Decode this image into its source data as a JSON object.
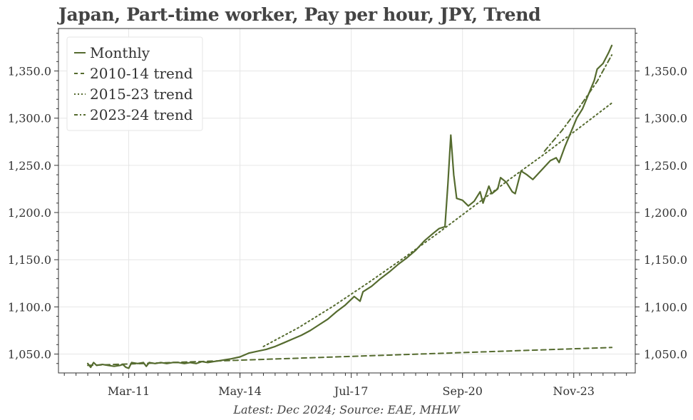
{
  "title": "Japan, Part-time worker, Pay per hour, JPY, Trend",
  "source": "Latest: Dec 2024; Source: EAE, MHLW",
  "colors": {
    "series": "#556b2f",
    "grid": "#e6e6e6",
    "axis": "#333333"
  },
  "chart_data": {
    "type": "line",
    "title": "Japan, Part-time worker, Pay per hour, JPY, Trend",
    "xlabel": "",
    "ylabel": "",
    "x_ticks": [
      "Mar-11",
      "May-14",
      "Jul-17",
      "Sep-20",
      "Nov-23"
    ],
    "y_ticks": [
      "1,050.0",
      "1,100.0",
      "1,150.0",
      "1,200.0",
      "1,250.0",
      "1,300.0",
      "1,350.0"
    ],
    "ylim": [
      1030,
      1395
    ],
    "xlim": [
      "2009-03",
      "2025-08"
    ],
    "grid": true,
    "legend_position": "top-left",
    "legend": [
      "Monthly",
      "2010-14 trend",
      "2015-23 trend",
      "2023-24 trend"
    ],
    "series": [
      {
        "name": "Monthly",
        "style": "solid",
        "points": [
          [
            "2010-01",
            1040
          ],
          [
            "2010-02",
            1036
          ],
          [
            "2010-03",
            1041
          ],
          [
            "2010-04",
            1038
          ],
          [
            "2010-06",
            1039
          ],
          [
            "2010-08",
            1038
          ],
          [
            "2010-10",
            1037
          ],
          [
            "2010-12",
            1038
          ],
          [
            "2011-01",
            1039
          ],
          [
            "2011-02",
            1036
          ],
          [
            "2011-03",
            1035
          ],
          [
            "2011-04",
            1041
          ],
          [
            "2011-06",
            1040
          ],
          [
            "2011-08",
            1041
          ],
          [
            "2011-09",
            1037
          ],
          [
            "2011-10",
            1041
          ],
          [
            "2011-12",
            1040
          ],
          [
            "2012-02",
            1041
          ],
          [
            "2012-04",
            1040
          ],
          [
            "2012-06",
            1041
          ],
          [
            "2012-08",
            1041
          ],
          [
            "2012-10",
            1040
          ],
          [
            "2012-12",
            1041
          ],
          [
            "2013-02",
            1040
          ],
          [
            "2013-04",
            1042
          ],
          [
            "2013-06",
            1041
          ],
          [
            "2013-08",
            1042
          ],
          [
            "2013-10",
            1043
          ],
          [
            "2013-12",
            1044
          ],
          [
            "2014-02",
            1045
          ],
          [
            "2014-05",
            1047
          ],
          [
            "2014-08",
            1051
          ],
          [
            "2014-11",
            1053
          ],
          [
            "2015-02",
            1055
          ],
          [
            "2015-05",
            1058
          ],
          [
            "2015-08",
            1062
          ],
          [
            "2015-11",
            1066
          ],
          [
            "2016-02",
            1070
          ],
          [
            "2016-05",
            1075
          ],
          [
            "2016-08",
            1081
          ],
          [
            "2016-11",
            1087
          ],
          [
            "2017-02",
            1095
          ],
          [
            "2017-05",
            1102
          ],
          [
            "2017-08",
            1111
          ],
          [
            "2017-10",
            1106
          ],
          [
            "2017-11",
            1116
          ],
          [
            "2018-02",
            1122
          ],
          [
            "2018-05",
            1130
          ],
          [
            "2018-08",
            1137
          ],
          [
            "2018-11",
            1145
          ],
          [
            "2019-02",
            1152
          ],
          [
            "2019-05",
            1160
          ],
          [
            "2019-08",
            1170
          ],
          [
            "2019-11",
            1178
          ],
          [
            "2020-01",
            1183
          ],
          [
            "2020-03",
            1185
          ],
          [
            "2020-04",
            1230
          ],
          [
            "2020-05",
            1282
          ],
          [
            "2020-06",
            1240
          ],
          [
            "2020-07",
            1215
          ],
          [
            "2020-09",
            1213
          ],
          [
            "2020-11",
            1207
          ],
          [
            "2021-01",
            1212
          ],
          [
            "2021-03",
            1222
          ],
          [
            "2021-04",
            1210
          ],
          [
            "2021-06",
            1228
          ],
          [
            "2021-07",
            1220
          ],
          [
            "2021-09",
            1225
          ],
          [
            "2021-10",
            1237
          ],
          [
            "2021-12",
            1232
          ],
          [
            "2022-02",
            1222
          ],
          [
            "2022-03",
            1220
          ],
          [
            "2022-05",
            1244
          ],
          [
            "2022-07",
            1240
          ],
          [
            "2022-09",
            1235
          ],
          [
            "2022-12",
            1245
          ],
          [
            "2023-03",
            1255
          ],
          [
            "2023-05",
            1258
          ],
          [
            "2023-06",
            1253
          ],
          [
            "2023-08",
            1270
          ],
          [
            "2023-10",
            1285
          ],
          [
            "2023-12",
            1300
          ],
          [
            "2024-02",
            1310
          ],
          [
            "2024-04",
            1325
          ],
          [
            "2024-06",
            1340
          ],
          [
            "2024-07",
            1352
          ],
          [
            "2024-09",
            1358
          ],
          [
            "2024-11",
            1370
          ],
          [
            "2024-12",
            1377
          ]
        ]
      },
      {
        "name": "2010-14 trend",
        "style": "dashed",
        "points": [
          [
            "2010-01",
            1038
          ],
          [
            "2024-12",
            1057
          ]
        ]
      },
      {
        "name": "2015-23 trend",
        "style": "dotted",
        "points": [
          [
            "2015-01",
            1058
          ],
          [
            "2016-01",
            1078
          ],
          [
            "2017-01",
            1101
          ],
          [
            "2018-01",
            1126
          ],
          [
            "2019-01",
            1152
          ],
          [
            "2020-01",
            1179
          ],
          [
            "2021-01",
            1207
          ],
          [
            "2022-01",
            1235
          ],
          [
            "2023-01",
            1262
          ],
          [
            "2024-01",
            1290
          ],
          [
            "2024-12",
            1316
          ]
        ]
      },
      {
        "name": "2023-24 trend",
        "style": "dash-dot",
        "points": [
          [
            "2023-01",
            1265
          ],
          [
            "2023-07",
            1287
          ],
          [
            "2024-01",
            1312
          ],
          [
            "2024-07",
            1339
          ],
          [
            "2024-12",
            1367
          ]
        ]
      }
    ]
  }
}
